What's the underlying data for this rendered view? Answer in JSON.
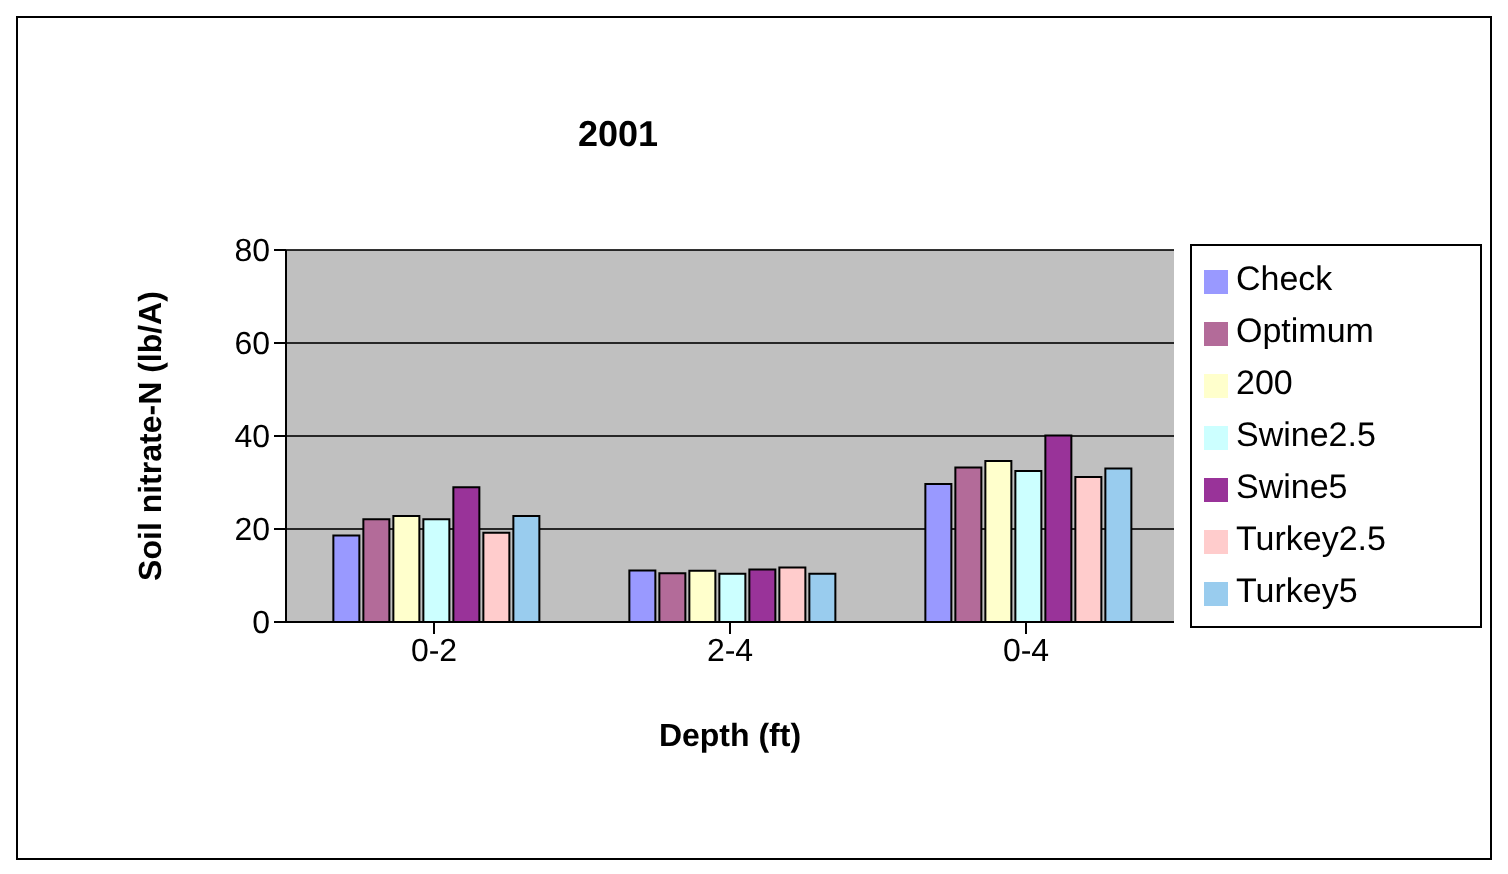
{
  "chart_data": {
    "type": "bar",
    "title": "2001",
    "xlabel": "Depth (ft)",
    "ylabel": "Soil nitrate-N (lb/A)",
    "categories": [
      "0-2",
      "2-4",
      "0-4"
    ],
    "series": [
      {
        "name": "Check",
        "color": "#9999ff",
        "values": [
          18.6,
          11.1,
          29.7
        ]
      },
      {
        "name": "Optimum",
        "color": "#b36b99",
        "values": [
          22.1,
          10.5,
          33.2
        ]
      },
      {
        "name": "200",
        "color": "#ffffcc",
        "values": [
          22.8,
          11,
          34.6
        ]
      },
      {
        "name": "Swine2.5",
        "color": "#ccffff",
        "values": [
          22.1,
          10.4,
          32.5
        ]
      },
      {
        "name": "Swine5",
        "color": "#993399",
        "values": [
          29,
          11.3,
          40.1
        ]
      },
      {
        "name": "Turkey2.5",
        "color": "#ffcccc",
        "values": [
          19.2,
          11.7,
          31.2
        ]
      },
      {
        "name": "Turkey5",
        "color": "#99ccee",
        "values": [
          22.8,
          10.4,
          33
        ]
      }
    ],
    "ylim": [
      0,
      80
    ],
    "yticks": [
      0,
      20,
      40,
      60,
      80
    ],
    "grid": "y",
    "legend": "right"
  }
}
